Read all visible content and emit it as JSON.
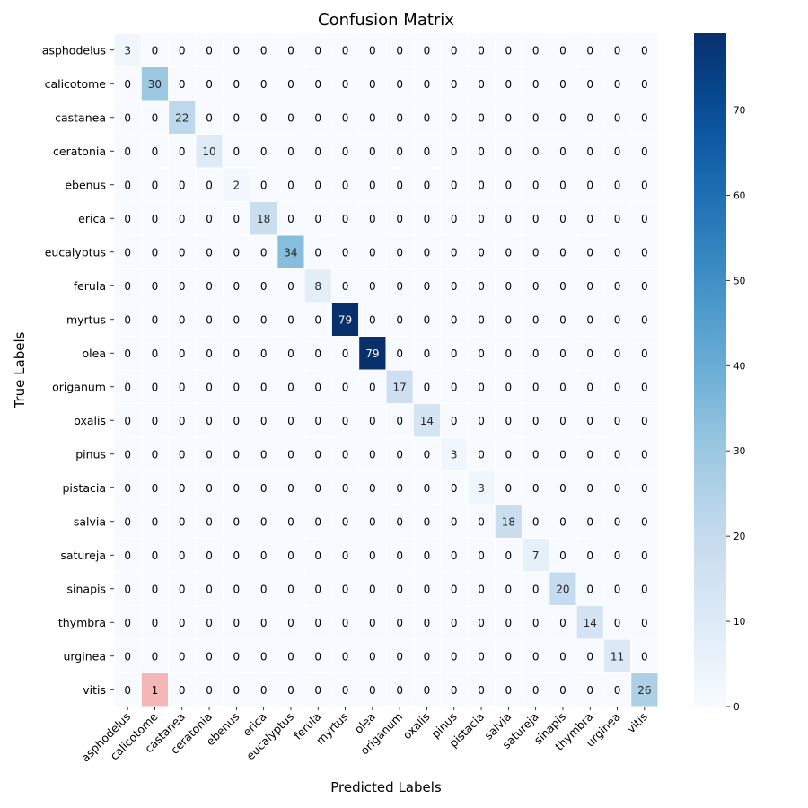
{
  "chart_data": {
    "type": "heatmap",
    "title": "Confusion Matrix",
    "xlabel": "Predicted Labels",
    "ylabel": "True Labels",
    "x_categories": [
      "asphodelus",
      "calicotome",
      "castanea",
      "ceratonia",
      "ebenus",
      "erica",
      "eucalyptus",
      "ferula",
      "myrtus",
      "olea",
      "origanum",
      "oxalis",
      "pinus",
      "pistacia",
      "salvia",
      "satureja",
      "sinapis",
      "thymbra",
      "urginea",
      "vitis"
    ],
    "y_categories": [
      "asphodelus",
      "calicotome",
      "castanea",
      "ceratonia",
      "ebenus",
      "erica",
      "eucalyptus",
      "ferula",
      "myrtus",
      "olea",
      "origanum",
      "oxalis",
      "pinus",
      "pistacia",
      "salvia",
      "satureja",
      "sinapis",
      "thymbra",
      "urginea",
      "vitis"
    ],
    "values": [
      [
        3,
        0,
        0,
        0,
        0,
        0,
        0,
        0,
        0,
        0,
        0,
        0,
        0,
        0,
        0,
        0,
        0,
        0,
        0,
        0
      ],
      [
        0,
        30,
        0,
        0,
        0,
        0,
        0,
        0,
        0,
        0,
        0,
        0,
        0,
        0,
        0,
        0,
        0,
        0,
        0,
        0
      ],
      [
        0,
        0,
        22,
        0,
        0,
        0,
        0,
        0,
        0,
        0,
        0,
        0,
        0,
        0,
        0,
        0,
        0,
        0,
        0,
        0
      ],
      [
        0,
        0,
        0,
        10,
        0,
        0,
        0,
        0,
        0,
        0,
        0,
        0,
        0,
        0,
        0,
        0,
        0,
        0,
        0,
        0
      ],
      [
        0,
        0,
        0,
        0,
        2,
        0,
        0,
        0,
        0,
        0,
        0,
        0,
        0,
        0,
        0,
        0,
        0,
        0,
        0,
        0
      ],
      [
        0,
        0,
        0,
        0,
        0,
        18,
        0,
        0,
        0,
        0,
        0,
        0,
        0,
        0,
        0,
        0,
        0,
        0,
        0,
        0
      ],
      [
        0,
        0,
        0,
        0,
        0,
        0,
        34,
        0,
        0,
        0,
        0,
        0,
        0,
        0,
        0,
        0,
        0,
        0,
        0,
        0
      ],
      [
        0,
        0,
        0,
        0,
        0,
        0,
        0,
        8,
        0,
        0,
        0,
        0,
        0,
        0,
        0,
        0,
        0,
        0,
        0,
        0
      ],
      [
        0,
        0,
        0,
        0,
        0,
        0,
        0,
        0,
        79,
        0,
        0,
        0,
        0,
        0,
        0,
        0,
        0,
        0,
        0,
        0
      ],
      [
        0,
        0,
        0,
        0,
        0,
        0,
        0,
        0,
        0,
        79,
        0,
        0,
        0,
        0,
        0,
        0,
        0,
        0,
        0,
        0
      ],
      [
        0,
        0,
        0,
        0,
        0,
        0,
        0,
        0,
        0,
        0,
        17,
        0,
        0,
        0,
        0,
        0,
        0,
        0,
        0,
        0
      ],
      [
        0,
        0,
        0,
        0,
        0,
        0,
        0,
        0,
        0,
        0,
        0,
        14,
        0,
        0,
        0,
        0,
        0,
        0,
        0,
        0
      ],
      [
        0,
        0,
        0,
        0,
        0,
        0,
        0,
        0,
        0,
        0,
        0,
        0,
        3,
        0,
        0,
        0,
        0,
        0,
        0,
        0
      ],
      [
        0,
        0,
        0,
        0,
        0,
        0,
        0,
        0,
        0,
        0,
        0,
        0,
        0,
        3,
        0,
        0,
        0,
        0,
        0,
        0
      ],
      [
        0,
        0,
        0,
        0,
        0,
        0,
        0,
        0,
        0,
        0,
        0,
        0,
        0,
        0,
        18,
        0,
        0,
        0,
        0,
        0
      ],
      [
        0,
        0,
        0,
        0,
        0,
        0,
        0,
        0,
        0,
        0,
        0,
        0,
        0,
        0,
        0,
        7,
        0,
        0,
        0,
        0
      ],
      [
        0,
        0,
        0,
        0,
        0,
        0,
        0,
        0,
        0,
        0,
        0,
        0,
        0,
        0,
        0,
        0,
        20,
        0,
        0,
        0
      ],
      [
        0,
        0,
        0,
        0,
        0,
        0,
        0,
        0,
        0,
        0,
        0,
        0,
        0,
        0,
        0,
        0,
        0,
        14,
        0,
        0
      ],
      [
        0,
        0,
        0,
        0,
        0,
        0,
        0,
        0,
        0,
        0,
        0,
        0,
        0,
        0,
        0,
        0,
        0,
        0,
        11,
        0
      ],
      [
        0,
        1,
        0,
        0,
        0,
        0,
        0,
        0,
        0,
        0,
        0,
        0,
        0,
        0,
        0,
        0,
        0,
        0,
        0,
        26
      ]
    ],
    "colorbar": {
      "min": 0,
      "max": 79,
      "ticks": [
        0,
        10,
        20,
        30,
        40,
        50,
        60,
        70
      ]
    },
    "colormap": "Blues",
    "highlight_color": "#f4b6b6",
    "highlighted_cells": [
      [
        19,
        1
      ]
    ]
  }
}
